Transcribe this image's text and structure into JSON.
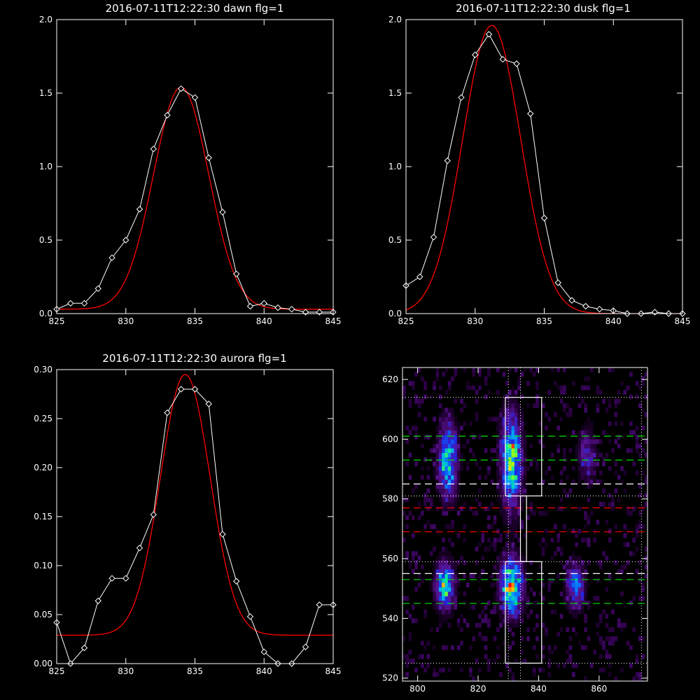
{
  "chart_data": [
    {
      "type": "line",
      "title": "2016-07-11T12:22:30 dawn flg=1",
      "xlim": [
        825,
        845
      ],
      "ylim": [
        0,
        2.0
      ],
      "xticks": [
        "825",
        "830",
        "835",
        "840",
        "845"
      ],
      "yticks": [
        "0.0",
        "0.5",
        "1.0",
        "1.5",
        "2.0"
      ],
      "series": [
        {
          "style": "data-diamonds",
          "color": "#ffffff",
          "x": [
            825,
            826,
            827,
            828,
            829,
            830,
            831,
            832,
            833,
            834,
            835,
            836,
            837,
            838,
            839,
            840,
            841,
            842,
            843,
            844,
            845
          ],
          "y": [
            0.03,
            0.07,
            0.07,
            0.17,
            0.38,
            0.5,
            0.71,
            1.12,
            1.35,
            1.53,
            1.47,
            1.06,
            0.69,
            0.27,
            0.05,
            0.07,
            0.04,
            0.03,
            0.01,
            0.01,
            0.01
          ]
        },
        {
          "style": "fit",
          "color": "#ff0000",
          "model": "gaussian",
          "amp": 1.51,
          "center": 834.0,
          "sigma": 2.0,
          "offset": 0.03
        }
      ]
    },
    {
      "type": "line",
      "title": "2016-07-11T12:22:30 dusk flg=1",
      "xlim": [
        825,
        845
      ],
      "ylim": [
        0,
        2.0
      ],
      "xticks": [
        "825",
        "830",
        "835",
        "840",
        "845"
      ],
      "yticks": [
        "0.0",
        "0.5",
        "1.0",
        "1.5",
        "2.0"
      ],
      "series": [
        {
          "style": "data-diamonds",
          "color": "#ffffff",
          "x": [
            825,
            826,
            827,
            828,
            829,
            830,
            831,
            832,
            833,
            834,
            835,
            836,
            837,
            838,
            839,
            840,
            841,
            842,
            843,
            844,
            845
          ],
          "y": [
            0.19,
            0.25,
            0.52,
            1.04,
            1.47,
            1.76,
            1.9,
            1.73,
            1.7,
            1.36,
            0.65,
            0.21,
            0.09,
            0.05,
            0.03,
            0.02,
            0.0,
            0.0,
            0.01,
            0.0,
            0.0
          ]
        },
        {
          "style": "fit",
          "color": "#ff0000",
          "model": "gaussian",
          "amp": 1.96,
          "center": 831.2,
          "sigma": 2.1,
          "offset": 0.0
        }
      ]
    },
    {
      "type": "line",
      "title": "2016-07-11T12:22:30 aurora flg=1",
      "xlim": [
        825,
        845
      ],
      "ylim": [
        0,
        0.3
      ],
      "xticks": [
        "825",
        "830",
        "835",
        "840",
        "845"
      ],
      "yticks": [
        "0.00",
        "0.05",
        "0.10",
        "0.15",
        "0.20",
        "0.25",
        "0.30"
      ],
      "series": [
        {
          "style": "data-diamonds",
          "color": "#ffffff",
          "x": [
            825,
            826,
            827,
            828,
            829,
            830,
            831,
            832,
            833,
            834,
            835,
            836,
            837,
            838,
            839,
            840,
            841,
            842,
            843,
            844,
            845
          ],
          "y": [
            0.042,
            0.0,
            0.016,
            0.064,
            0.087,
            0.087,
            0.118,
            0.152,
            0.256,
            0.28,
            0.28,
            0.265,
            0.132,
            0.084,
            0.048,
            0.012,
            0.0,
            0.0,
            0.017,
            0.06,
            0.06
          ]
        },
        {
          "style": "fit",
          "color": "#ff0000",
          "model": "gaussian",
          "amp": 0.266,
          "center": 834.3,
          "sigma": 1.8,
          "offset": 0.029
        }
      ]
    },
    {
      "type": "heatmap",
      "title": "",
      "xlim": [
        795,
        876
      ],
      "ylim": [
        519,
        624
      ],
      "xticks": [
        "800",
        "820",
        "840",
        "860"
      ],
      "yticks": [
        "520",
        "540",
        "560",
        "580",
        "600",
        "620"
      ],
      "emission_blobs": [
        {
          "x": 810,
          "y": 593,
          "sx": 2.0,
          "sy": 8.0,
          "peak": 0.75
        },
        {
          "x": 831,
          "y": 593,
          "sx": 2.2,
          "sy": 10.0,
          "peak": 0.85
        },
        {
          "x": 856,
          "y": 595,
          "sx": 2.0,
          "sy": 6.0,
          "peak": 0.3
        },
        {
          "x": 809,
          "y": 551,
          "sx": 2.0,
          "sy": 5.0,
          "peak": 0.8
        },
        {
          "x": 831,
          "y": 551,
          "sx": 2.3,
          "sy": 6.0,
          "peak": 1.0
        },
        {
          "x": 852,
          "y": 551,
          "sx": 2.0,
          "sy": 5.0,
          "peak": 0.5
        }
      ],
      "boxes": [
        {
          "x": [
            829,
            841
          ],
          "y": [
            581,
            614
          ],
          "color": "#ffffff"
        },
        {
          "x": [
            829,
            841
          ],
          "y": [
            525,
            559
          ],
          "color": "#ffffff"
        },
        {
          "x": [
            834,
            836
          ],
          "y": [
            559,
            581
          ],
          "color": "#ffffff"
        }
      ],
      "dotted_vlines": [
        {
          "x": 830,
          "color": "#ffffff"
        },
        {
          "x": 834,
          "color": "#ffffff"
        },
        {
          "x": 874,
          "color": "#ffffff"
        }
      ],
      "dotted_hlines": [
        {
          "y": 614,
          "color": "#ffffff"
        },
        {
          "y": 581,
          "color": "#ffffff"
        },
        {
          "y": 559,
          "color": "#ffffff"
        },
        {
          "y": 525,
          "color": "#ffffff"
        }
      ],
      "dashed_hlines": [
        {
          "y": 601,
          "color": "#00e000"
        },
        {
          "y": 593,
          "color": "#00e000"
        },
        {
          "y": 585,
          "color": "#ffffff"
        },
        {
          "y": 577,
          "color": "#ff0000"
        },
        {
          "y": 569,
          "color": "#ff0000"
        },
        {
          "y": 555,
          "color": "#ffffff"
        },
        {
          "y": 553,
          "color": "#00e000"
        },
        {
          "y": 545,
          "color": "#00e000"
        }
      ]
    }
  ]
}
